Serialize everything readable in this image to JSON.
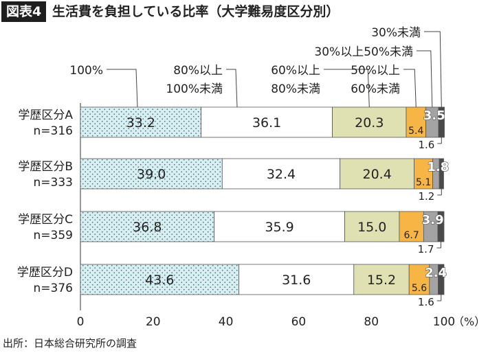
{
  "figure_label": "図表4",
  "source": "出所：日本総合研究所の調査",
  "chart_data": {
    "type": "bar",
    "orientation": "horizontal",
    "stacked": true,
    "title": "生活費を負担している比率（大学難易度区分別）",
    "xlim": [
      0,
      100
    ],
    "x_ticks": [
      "0",
      "20",
      "40",
      "60",
      "80",
      "100"
    ],
    "x_unit": "（%）",
    "grid": false,
    "legend_placement": "top, labels with leader lines",
    "categories": [
      {
        "name": "学歴区分A",
        "n": "n=316"
      },
      {
        "name": "学歴区分B",
        "n": "n=333"
      },
      {
        "name": "学歴区分C",
        "n": "n=359"
      },
      {
        "name": "学歴区分D",
        "n": "n=376"
      }
    ],
    "series": [
      {
        "name": "100%",
        "color": "#d9eef1",
        "pattern": "dots",
        "values": [
          33.2,
          39.0,
          36.8,
          43.6
        ],
        "labels": [
          "33.2",
          "39.0",
          "36.8",
          "43.6"
        ]
      },
      {
        "name": "80%以上\n100%未満",
        "color": "#ffffff",
        "values": [
          36.1,
          32.4,
          35.9,
          31.6
        ],
        "labels": [
          "36.1",
          "32.4",
          "35.9",
          "31.6"
        ]
      },
      {
        "name": "60%以上\n80%未満",
        "color": "#dfe1b2",
        "values": [
          20.3,
          20.4,
          15.0,
          15.2
        ],
        "labels": [
          "20.3",
          "20.4",
          "15.0",
          "15.2"
        ]
      },
      {
        "name": "50%以上\n60%未満",
        "color": "#f6b544",
        "values": [
          5.4,
          5.1,
          6.7,
          5.6
        ],
        "labels": [
          "5.4",
          "5.1",
          "6.7",
          "5.6"
        ]
      },
      {
        "name": "30%以上50%未満",
        "color": "#a3a3a3",
        "values": [
          3.5,
          1.8,
          3.9,
          2.4
        ],
        "labels": [
          "3.5",
          "1.8",
          "3.9",
          "2.4"
        ]
      },
      {
        "name": "30%未満",
        "color": "#4a4a4a",
        "values": [
          1.6,
          1.2,
          1.7,
          1.6
        ],
        "labels": [
          "1.6",
          "1.2",
          "1.7",
          "1.6"
        ]
      }
    ]
  }
}
